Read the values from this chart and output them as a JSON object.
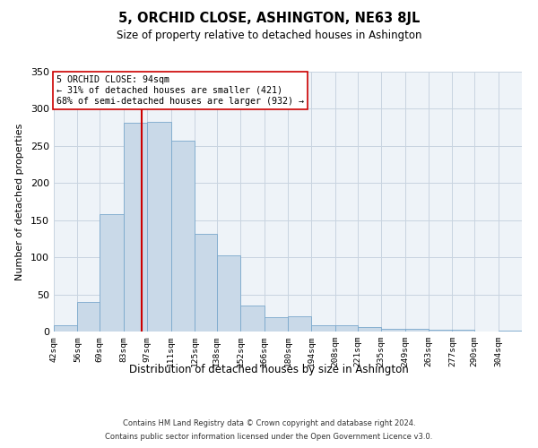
{
  "title": "5, ORCHID CLOSE, ASHINGTON, NE63 8JL",
  "subtitle": "Size of property relative to detached houses in Ashington",
  "xlabel": "Distribution of detached houses by size in Ashington",
  "ylabel": "Number of detached properties",
  "footer_line1": "Contains HM Land Registry data © Crown copyright and database right 2024.",
  "footer_line2": "Contains public sector information licensed under the Open Government Licence v3.0.",
  "annotation_title": "5 ORCHID CLOSE: 94sqm",
  "annotation_line1": "← 31% of detached houses are smaller (421)",
  "annotation_line2": "68% of semi-detached houses are larger (932) →",
  "property_line_x": 94,
  "bar_edges": [
    42,
    56,
    69,
    83,
    97,
    111,
    125,
    138,
    152,
    166,
    180,
    194,
    208,
    221,
    235,
    249,
    263,
    277,
    290,
    304,
    318
  ],
  "bar_heights": [
    8,
    40,
    158,
    281,
    283,
    257,
    132,
    102,
    35,
    19,
    20,
    8,
    8,
    6,
    4,
    4,
    3,
    2,
    0,
    1
  ],
  "bar_color": "#c9d9e8",
  "bar_edge_color": "#7aa8cc",
  "line_color": "#cc0000",
  "grid_color": "#c8d4e0",
  "bg_color": "#eef3f8",
  "ylim": [
    0,
    350
  ],
  "yticks": [
    0,
    50,
    100,
    150,
    200,
    250,
    300,
    350
  ]
}
